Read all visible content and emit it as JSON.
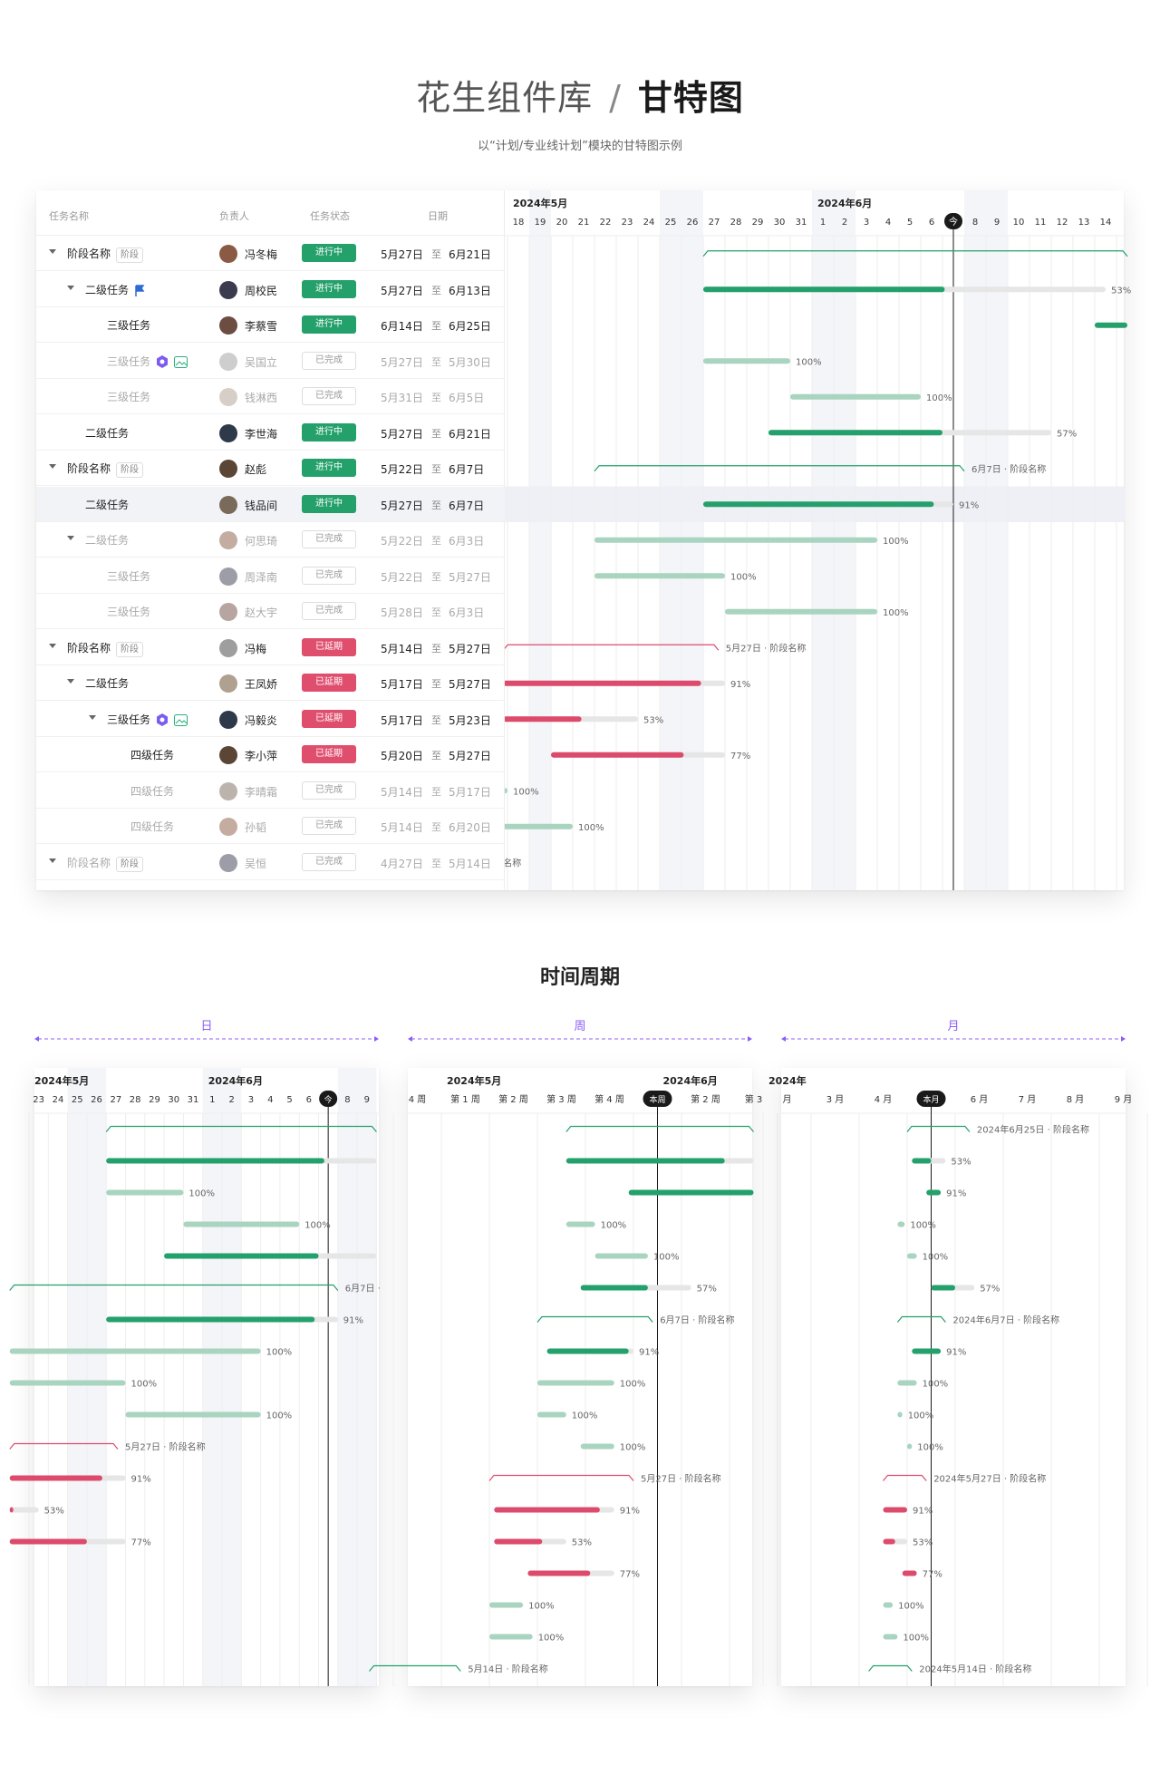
{
  "header": {
    "library": "花生组件库",
    "separator": "/",
    "current": "甘特图",
    "subtitle": "以“计划/专业线计划”模块的甘特图示例"
  },
  "table": {
    "columns": {
      "name": "任务名称",
      "owner": "负责人",
      "status": "任务状态",
      "date": "日期"
    },
    "to": "至",
    "rows": [
      {
        "name": "阶段名称",
        "tag": "阶段",
        "level": 0,
        "caret": true,
        "owner": "冯冬梅",
        "status": "进行中",
        "kind": "g",
        "start": "5月27日",
        "end": "6月21日",
        "done": false
      },
      {
        "name": "二级任务",
        "level": 1,
        "caret": true,
        "flag": true,
        "owner": "周校民",
        "status": "进行中",
        "kind": "g",
        "start": "5月27日",
        "end": "6月13日",
        "done": false
      },
      {
        "name": "三级任务",
        "level": 2,
        "owner": "李蔡雪",
        "status": "进行中",
        "kind": "g",
        "start": "6月14日",
        "end": "6月25日",
        "done": false
      },
      {
        "name": "三级任务",
        "level": 2,
        "icons": true,
        "owner": "吴国立",
        "status": "已完成",
        "kind": "d",
        "start": "5月27日",
        "end": "5月30日",
        "done": true
      },
      {
        "name": "三级任务",
        "level": 2,
        "owner": "钱淋西",
        "status": "已完成",
        "kind": "d",
        "start": "5月31日",
        "end": "6月5日",
        "done": true
      },
      {
        "name": "二级任务",
        "level": 1,
        "owner": "李世海",
        "status": "进行中",
        "kind": "g",
        "start": "5月27日",
        "end": "6月21日",
        "done": false
      },
      {
        "name": "阶段名称",
        "tag": "阶段",
        "level": 0,
        "caret": true,
        "owner": "赵彪",
        "status": "进行中",
        "kind": "g",
        "start": "5月22日",
        "end": "6月7日",
        "done": false
      },
      {
        "name": "二级任务",
        "level": 1,
        "highlight": true,
        "owner": "钱品间",
        "status": "进行中",
        "kind": "g",
        "start": "5月27日",
        "end": "6月7日",
        "done": false
      },
      {
        "name": "二级任务",
        "level": 1,
        "caret": true,
        "owner": "何思琦",
        "status": "已完成",
        "kind": "d",
        "start": "5月22日",
        "end": "6月3日",
        "done": true
      },
      {
        "name": "三级任务",
        "level": 2,
        "owner": "周泽南",
        "status": "已完成",
        "kind": "d",
        "start": "5月22日",
        "end": "5月27日",
        "done": true
      },
      {
        "name": "三级任务",
        "level": 2,
        "owner": "赵大宇",
        "status": "已完成",
        "kind": "d",
        "start": "5月28日",
        "end": "6月3日",
        "done": true
      },
      {
        "name": "阶段名称",
        "tag": "阶段",
        "level": 0,
        "caret": true,
        "owner": "冯梅",
        "status": "已延期",
        "kind": "r",
        "start": "5月14日",
        "end": "5月27日",
        "done": false
      },
      {
        "name": "二级任务",
        "level": 1,
        "caret": true,
        "owner": "王凤娇",
        "status": "已延期",
        "kind": "r",
        "start": "5月17日",
        "end": "5月27日",
        "done": false
      },
      {
        "name": "三级任务",
        "level": 2,
        "caret": true,
        "icons": true,
        "owner": "冯毅炎",
        "status": "已延期",
        "kind": "r",
        "start": "5月17日",
        "end": "5月23日",
        "done": false
      },
      {
        "name": "四级任务",
        "level": 3,
        "owner": "李小萍",
        "status": "已延期",
        "kind": "r",
        "start": "5月20日",
        "end": "5月27日",
        "done": false
      },
      {
        "name": "四级任务",
        "level": 3,
        "owner": "李晴霜",
        "status": "已完成",
        "kind": "d",
        "start": "5月14日",
        "end": "5月17日",
        "done": true
      },
      {
        "name": "四级任务",
        "level": 3,
        "owner": "孙韬",
        "status": "已完成",
        "kind": "d",
        "start": "5月14日",
        "end": "6月20日",
        "done": true
      },
      {
        "name": "阶段名称",
        "tag": "阶段",
        "level": 0,
        "caret": true,
        "owner": "吴恒",
        "status": "已完成",
        "kind": "d",
        "start": "4月27日",
        "end": "5月14日",
        "done": true
      }
    ]
  },
  "gantt": {
    "months": [
      {
        "label": "2024年5月",
        "from": 0
      },
      {
        "label": "2024年6月",
        "from": 14
      }
    ],
    "days": [
      "18",
      "19",
      "20",
      "21",
      "22",
      "23",
      "24",
      "25",
      "26",
      "27",
      "28",
      "29",
      "30",
      "31",
      "1",
      "2",
      "3",
      "4",
      "5",
      "6",
      "今",
      "8",
      "9",
      "10",
      "11",
      "12",
      "13",
      "14"
    ],
    "today_index": 20,
    "weekends": [
      1,
      7,
      8,
      14,
      15,
      21,
      22
    ],
    "bars": [
      {
        "type": "phase",
        "color": "g",
        "s": 9,
        "e": 28.5,
        "label": ""
      },
      {
        "type": "bar",
        "color": "g",
        "s": 9,
        "e": 20.1,
        "track": 27.5,
        "label": "53%"
      },
      {
        "type": "bar",
        "color": "g",
        "s": 27,
        "e": 28.5,
        "track": 28.5,
        "label": ""
      },
      {
        "type": "bar",
        "color": "gl",
        "s": 9,
        "e": 13,
        "track": 13,
        "label": "100%"
      },
      {
        "type": "bar",
        "color": "gl",
        "s": 13,
        "e": 19,
        "track": 19,
        "label": "100%"
      },
      {
        "type": "bar",
        "color": "g",
        "s": 12,
        "e": 20,
        "track": 25,
        "label": "57%"
      },
      {
        "type": "phase",
        "color": "g",
        "s": 4,
        "e": 21,
        "label": "6月7日 · 阶段名称"
      },
      {
        "type": "bar",
        "color": "g",
        "s": 9,
        "e": 19.6,
        "track": 20.5,
        "label": "91%"
      },
      {
        "type": "bar",
        "color": "gl",
        "s": 4,
        "e": 17,
        "track": 17,
        "label": "100%"
      },
      {
        "type": "bar",
        "color": "gl",
        "s": 4,
        "e": 10,
        "track": 10,
        "label": "100%"
      },
      {
        "type": "bar",
        "color": "gl",
        "s": 10,
        "e": 17,
        "track": 17,
        "label": "100%"
      },
      {
        "type": "phase",
        "color": "r",
        "s": -0.2,
        "e": 9.7,
        "label": "5月27日 · 阶段名称"
      },
      {
        "type": "bar",
        "color": "r",
        "s": -0.2,
        "e": 8.9,
        "track": 10,
        "label": "91%"
      },
      {
        "type": "bar",
        "color": "r",
        "s": -0.2,
        "e": 3.4,
        "track": 6,
        "label": "53%"
      },
      {
        "type": "bar",
        "color": "r",
        "s": 2,
        "e": 8.1,
        "track": 10,
        "label": "77%"
      },
      {
        "type": "bar",
        "color": "gl",
        "s": -0.2,
        "e": 0,
        "track": 0,
        "label": "100%"
      },
      {
        "type": "bar",
        "color": "gl",
        "s": -0.2,
        "e": 3,
        "track": 3,
        "label": "100%"
      },
      {
        "type": "text",
        "s": -0.2,
        "label": "名称"
      }
    ]
  },
  "periods": {
    "title": "时间周期",
    "labels": [
      "日",
      "周",
      "月"
    ],
    "day": {
      "months": [
        {
          "label": "2024年5月",
          "from": 0
        },
        {
          "label": "2024年6月",
          "from": 9
        }
      ],
      "ticks": [
        "23",
        "24",
        "25",
        "26",
        "27",
        "28",
        "29",
        "30",
        "31",
        "1",
        "2",
        "3",
        "4",
        "5",
        "6",
        "今",
        "8",
        "9"
      ],
      "today": 15,
      "weekends": [
        2,
        3,
        9,
        10,
        16,
        17
      ],
      "bars": [
        {
          "type": "phase",
          "color": "g",
          "s": 4,
          "e": 18,
          "label": ""
        },
        {
          "type": "bar",
          "color": "g",
          "s": 4,
          "e": 15.3,
          "track": 18,
          "label": ""
        },
        {
          "type": "bar",
          "color": "gl",
          "s": 4,
          "e": 8,
          "track": 8,
          "label": "100%"
        },
        {
          "type": "bar",
          "color": "gl",
          "s": 8,
          "e": 14,
          "track": 14,
          "label": "100%"
        },
        {
          "type": "bar",
          "color": "g",
          "s": 7,
          "e": 15,
          "track": 18,
          "label": ""
        },
        {
          "type": "phase",
          "color": "g",
          "s": -1,
          "e": 16,
          "label": "6月7日 ·"
        },
        {
          "type": "bar",
          "color": "g",
          "s": 4,
          "e": 14.8,
          "track": 16,
          "label": "91%"
        },
        {
          "type": "bar",
          "color": "gl",
          "s": -1,
          "e": 12,
          "track": 12,
          "label": "100%"
        },
        {
          "type": "bar",
          "color": "gl",
          "s": -1,
          "e": 5,
          "track": 5,
          "label": "100%"
        },
        {
          "type": "bar",
          "color": "gl",
          "s": 5,
          "e": 12,
          "track": 12,
          "label": "100%"
        },
        {
          "type": "phase",
          "color": "r",
          "s": -1,
          "e": 4.6,
          "label": "5月27日 · 阶段名称"
        },
        {
          "type": "bar",
          "color": "r",
          "s": -1,
          "e": 3.8,
          "track": 5,
          "label": "91%"
        },
        {
          "type": "bar",
          "color": "r",
          "s": -1,
          "e": -1,
          "track": 0.5,
          "label": "53%"
        },
        {
          "type": "bar",
          "color": "r",
          "s": -1,
          "e": 3,
          "track": 5,
          "label": "77%"
        }
      ]
    },
    "week": {
      "months": [
        {
          "label": "2024年5月",
          "from": 1
        },
        {
          "label": "2024年6月",
          "from": 5.5
        }
      ],
      "ticks": [
        "4 周",
        "第 1 周",
        "第 2 周",
        "第 3 周",
        "第 4 周",
        "本周",
        "第 2 周",
        "第 3"
      ],
      "today": 5,
      "bars": [
        {
          "type": "phase",
          "color": "g",
          "s": 3.6,
          "e": 7.5,
          "label": ""
        },
        {
          "type": "bar",
          "color": "g",
          "s": 3.6,
          "e": 6.9,
          "track": 7.5,
          "label": ""
        },
        {
          "type": "bar",
          "color": "g",
          "s": 4.9,
          "e": 7.5,
          "track": 7.5,
          "label": ""
        },
        {
          "type": "bar",
          "color": "gl",
          "s": 3.6,
          "e": 4.2,
          "track": 4.2,
          "label": "100%"
        },
        {
          "type": "bar",
          "color": "gl",
          "s": 4.2,
          "e": 5.3,
          "track": 5.3,
          "label": "100%"
        },
        {
          "type": "bar",
          "color": "g",
          "s": 3.9,
          "e": 5.3,
          "track": 6.2,
          "label": "57%"
        },
        {
          "type": "phase",
          "color": "g",
          "s": 3,
          "e": 5.4,
          "label": "6月7日 · 阶段名称"
        },
        {
          "type": "bar",
          "color": "g",
          "s": 3.2,
          "e": 4.9,
          "track": 5,
          "label": "91%"
        },
        {
          "type": "bar",
          "color": "gl",
          "s": 3,
          "e": 4.6,
          "track": 4.6,
          "label": "100%"
        },
        {
          "type": "bar",
          "color": "gl",
          "s": 3,
          "e": 3.6,
          "track": 3.6,
          "label": "100%"
        },
        {
          "type": "bar",
          "color": "gl",
          "s": 3.9,
          "e": 4.6,
          "track": 4.6,
          "label": "100%"
        },
        {
          "type": "phase",
          "color": "r",
          "s": 2,
          "e": 5,
          "label": "5月27日 · 阶段名称"
        },
        {
          "type": "bar",
          "color": "r",
          "s": 2.1,
          "e": 4.3,
          "track": 4.6,
          "label": "91%"
        },
        {
          "type": "bar",
          "color": "r",
          "s": 2.1,
          "e": 3.1,
          "track": 3.6,
          "label": "53%"
        },
        {
          "type": "bar",
          "color": "r",
          "s": 2.8,
          "e": 4.1,
          "track": 4.6,
          "label": "77%"
        },
        {
          "type": "bar",
          "color": "gl",
          "s": 2,
          "e": 2.7,
          "track": 2.7,
          "label": "100%"
        },
        {
          "type": "bar",
          "color": "gl",
          "s": 2,
          "e": 2.9,
          "track": 2.9,
          "label": "100%"
        },
        {
          "type": "phase",
          "color": "g",
          "s": -0.5,
          "e": 1.4,
          "label": "5月14日 · 阶段名称"
        }
      ]
    },
    "month": {
      "months": [
        {
          "label": "2024年",
          "from": 0
        }
      ],
      "ticks": [
        "月",
        "3 月",
        "4 月",
        "本月",
        "6 月",
        "7 月",
        "8 月",
        "9 月"
      ],
      "today": 3,
      "bars": [
        {
          "type": "phase",
          "color": "g",
          "s": 3,
          "e": 4.3,
          "label": "2024年6月25日 · 阶段名称"
        },
        {
          "type": "bar",
          "color": "g",
          "s": 3.1,
          "e": 3.5,
          "track": 3.8,
          "label": "53%"
        },
        {
          "type": "bar",
          "color": "g",
          "s": 3.4,
          "e": 3.7,
          "track": 3.7,
          "label": "91%"
        },
        {
          "type": "bar",
          "color": "gl",
          "s": 2.8,
          "e": 2.95,
          "track": 2.95,
          "label": "100%"
        },
        {
          "type": "bar",
          "color": "gl",
          "s": 3,
          "e": 3.2,
          "track": 3.2,
          "label": "100%"
        },
        {
          "type": "bar",
          "color": "g",
          "s": 3.5,
          "e": 4,
          "track": 4.4,
          "label": "57%"
        },
        {
          "type": "phase",
          "color": "g",
          "s": 2.8,
          "e": 3.8,
          "label": "2024年6月7日 · 阶段名称"
        },
        {
          "type": "bar",
          "color": "g",
          "s": 3.1,
          "e": 3.7,
          "track": 3.7,
          "label": "91%"
        },
        {
          "type": "bar",
          "color": "gl",
          "s": 2.8,
          "e": 3.2,
          "track": 3.2,
          "label": "100%"
        },
        {
          "type": "bar",
          "color": "gl",
          "s": 2.8,
          "e": 2.9,
          "track": 2.9,
          "label": "100%"
        },
        {
          "type": "bar",
          "color": "gl",
          "s": 3,
          "e": 3.1,
          "track": 3.1,
          "label": "100%"
        },
        {
          "type": "phase",
          "color": "r",
          "s": 2.5,
          "e": 3.4,
          "label": "2024年5月27日 · 阶段名称"
        },
        {
          "type": "bar",
          "color": "r",
          "s": 2.5,
          "e": 3,
          "track": 3,
          "label": "91%"
        },
        {
          "type": "bar",
          "color": "r",
          "s": 2.5,
          "e": 2.75,
          "track": 3,
          "label": "53%"
        },
        {
          "type": "bar",
          "color": "r",
          "s": 2.9,
          "e": 3.2,
          "track": 3.2,
          "label": "77%"
        },
        {
          "type": "bar",
          "color": "gl",
          "s": 2.5,
          "e": 2.7,
          "track": 2.7,
          "label": "100%"
        },
        {
          "type": "bar",
          "color": "gl",
          "s": 2.5,
          "e": 2.8,
          "track": 2.8,
          "label": "100%"
        },
        {
          "type": "phase",
          "color": "g",
          "s": 2.2,
          "e": 3.1,
          "label": "2024年5月14日 · 阶段名称"
        }
      ]
    }
  },
  "colors": {
    "green": "#23a06b",
    "green_light": "#a8d4c0",
    "red": "#dd4b6c",
    "track": "#e6e6e6",
    "today": "#1a1a1a",
    "weekend": "#f4f5f9",
    "purple": "#8b5cf6"
  }
}
